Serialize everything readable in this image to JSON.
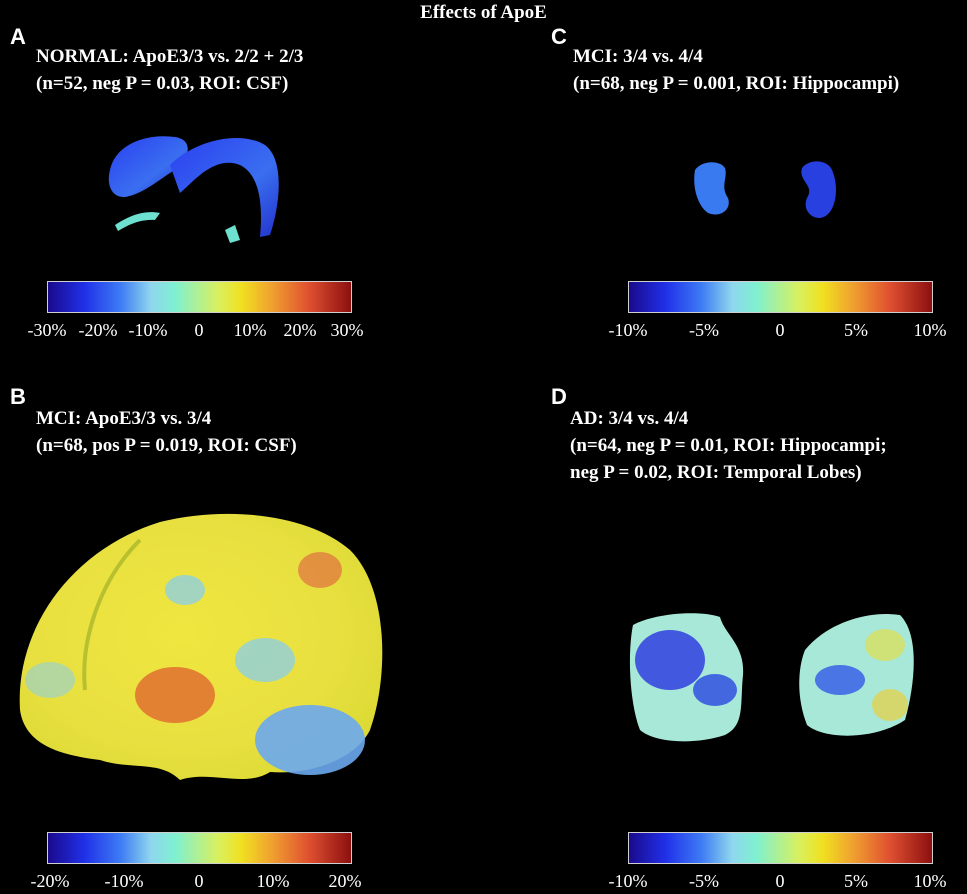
{
  "figure_title": "Effects of ApoE",
  "panels": [
    {
      "letter": "A",
      "lines": [
        "NORMAL: ApoE3/3 vs. 2/2 + 2/3",
        "(n=52, neg P = 0.03, ROI: CSF)"
      ],
      "colorbar_ticks": [
        "-30%",
        "-20%",
        "-10%",
        "0",
        "10%",
        "20%",
        "30%"
      ]
    },
    {
      "letter": "B",
      "lines": [
        "MCI: ApoE3/3 vs. 3/4",
        "(n=68, pos P = 0.019, ROI: CSF)"
      ],
      "colorbar_ticks": [
        "-20%",
        "-10%",
        "0",
        "10%",
        "20%"
      ]
    },
    {
      "letter": "C",
      "lines": [
        "MCI: 3/4 vs. 4/4",
        "(n=68, neg P = 0.001, ROI: Hippocampi)"
      ],
      "colorbar_ticks": [
        "-10%",
        "-5%",
        "0",
        "5%",
        "10%"
      ]
    },
    {
      "letter": "D",
      "lines": [
        "AD: 3/4 vs. 4/4",
        "(n=64, neg P = 0.01, ROI: Hippocampi;",
        "neg P = 0.02, ROI: Temporal Lobes)"
      ],
      "colorbar_ticks": [
        "-10%",
        "-5%",
        "0",
        "5%",
        "10%"
      ]
    }
  ],
  "colormap": [
    "#1a0a8c",
    "#2030e8",
    "#3e7cf4",
    "#8fd6ee",
    "#7ff0d0",
    "#d8f060",
    "#f0e020",
    "#f0a030",
    "#e05030",
    "#8c1010"
  ]
}
